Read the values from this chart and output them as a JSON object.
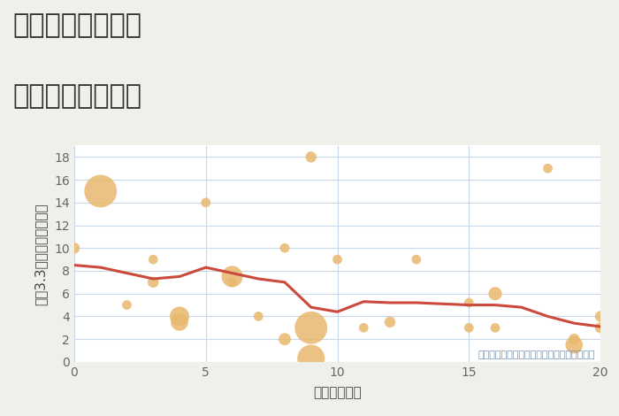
{
  "title_line1": "三重県伊賀市瀧の",
  "title_line2": "駅距離別土地価格",
  "xlabel": "駅距離（分）",
  "ylabel": "坪（3.3㎡）単価（万円）",
  "background_color": "#f0f0eb",
  "plot_bg_color": "#ffffff",
  "scatter_x": [
    0,
    1,
    2,
    3,
    3,
    4,
    4,
    5,
    6,
    6,
    7,
    8,
    8,
    9,
    9,
    9,
    10,
    11,
    12,
    13,
    15,
    15,
    16,
    16,
    18,
    19,
    19,
    20,
    20
  ],
  "scatter_y": [
    10,
    15,
    5,
    7,
    9,
    4,
    3.5,
    14,
    7.5,
    7,
    4,
    2,
    10,
    0.3,
    3,
    18,
    9,
    3,
    3.5,
    9,
    3,
    5.2,
    3,
    6,
    17,
    2,
    1.5,
    4,
    3
  ],
  "scatter_size": [
    80,
    700,
    60,
    80,
    60,
    250,
    200,
    60,
    300,
    60,
    60,
    100,
    60,
    500,
    700,
    80,
    60,
    60,
    80,
    60,
    60,
    60,
    60,
    120,
    60,
    80,
    200,
    80,
    80
  ],
  "scatter_color": "#e8b86d",
  "scatter_alpha": 0.85,
  "line_x": [
    0,
    1,
    2,
    3,
    4,
    5,
    6,
    7,
    8,
    9,
    10,
    11,
    12,
    13,
    14,
    15,
    16,
    17,
    18,
    19,
    20
  ],
  "line_y": [
    8.5,
    8.3,
    7.8,
    7.3,
    7.5,
    8.3,
    7.8,
    7.3,
    7.0,
    4.8,
    4.4,
    5.3,
    5.2,
    5.2,
    5.1,
    5.0,
    5.0,
    4.8,
    4.0,
    3.4,
    3.1
  ],
  "line_color": "#cc4a3c",
  "line_width": 2.2,
  "xlim": [
    0,
    20
  ],
  "ylim": [
    0,
    19
  ],
  "xticks": [
    0,
    5,
    10,
    15,
    20
  ],
  "yticks": [
    0,
    2,
    4,
    6,
    8,
    10,
    12,
    14,
    16,
    18
  ],
  "grid_color": "#c8d8e8",
  "annotation": "円の大きさは、取引のあった物件面積を示す",
  "annotation_color": "#7090b0",
  "title_fontsize": 22,
  "label_fontsize": 11,
  "tick_fontsize": 10
}
